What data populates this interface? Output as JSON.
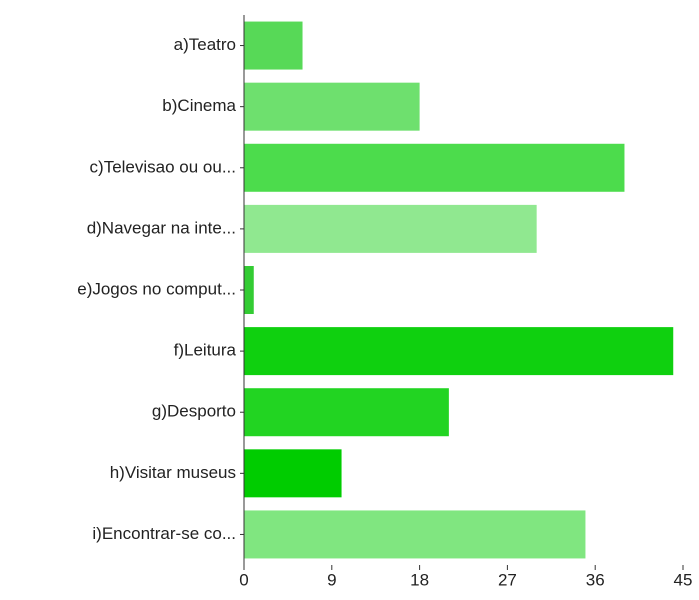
{
  "chart_data": {
    "type": "barh",
    "categories": [
      "a)Teatro",
      "b)Cinema",
      "c)Televisao ou ou...",
      "d)Navegar na inte...",
      "e)Jogos no comput...",
      "f)Leitura",
      "g)Desporto",
      "h)Visitar museus",
      "i)Encontrar-se co..."
    ],
    "values": [
      6,
      18,
      39,
      30,
      1,
      44,
      21,
      10,
      35
    ],
    "colors": [
      "#57d957",
      "#6ee06e",
      "#4cdc4c",
      "#90e890",
      "#33cc33",
      "#0fd00f",
      "#22d422",
      "#00cc00",
      "#80e680"
    ],
    "xlim": [
      0,
      45
    ],
    "xticks": [
      0,
      9,
      18,
      27,
      36,
      45
    ],
    "grid": false
  }
}
